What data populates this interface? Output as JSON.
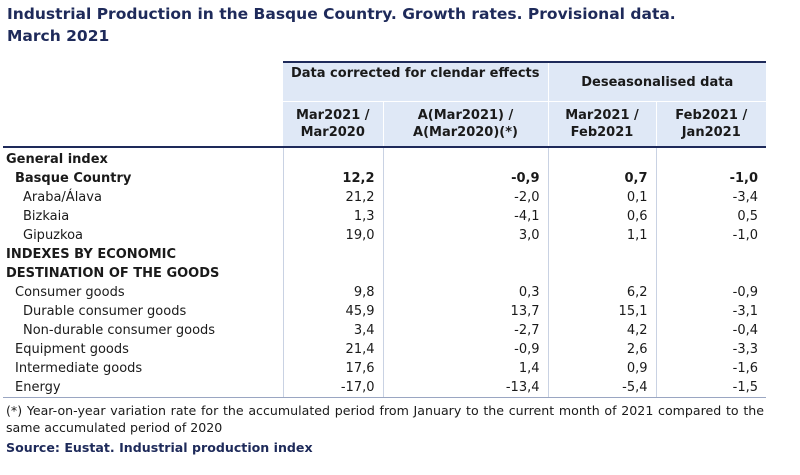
{
  "title": {
    "line1": "Industrial Production in the Basque Country. Growth rates. Provisional data.",
    "line2": "March 2021"
  },
  "headers": {
    "group1": "Data corrected for clendar effects",
    "group2": "Deseasonalised data",
    "col1": [
      "Mar2021 /",
      "Mar2020"
    ],
    "col2": [
      "A(Mar2021) /",
      "A(Mar2020)(*)"
    ],
    "col3": [
      "Mar2021 /",
      "Feb2021"
    ],
    "col4": [
      "Feb2021 /",
      "Jan2021"
    ]
  },
  "rows": [
    {
      "label": "General index",
      "type": "section",
      "values": [
        "",
        "",
        "",
        ""
      ]
    },
    {
      "label": "Basque Country",
      "type": "bold",
      "values": [
        "12,2",
        "-0,9",
        "0,7",
        "-1,0"
      ]
    },
    {
      "label": "Araba/Álava",
      "type": "ind2",
      "values": [
        "21,2",
        "-2,0",
        "0,1",
        "-3,4"
      ]
    },
    {
      "label": "Bizkaia",
      "type": "ind2",
      "values": [
        "1,3",
        "-4,1",
        "0,6",
        "0,5"
      ]
    },
    {
      "label": "Gipuzkoa",
      "type": "ind2",
      "values": [
        "19,0",
        "3,0",
        "1,1",
        "-1,0"
      ]
    },
    {
      "label": "INDEXES BY ECONOMIC",
      "type": "section",
      "values": [
        "",
        "",
        "",
        ""
      ]
    },
    {
      "label": "DESTINATION OF THE GOODS",
      "type": "section",
      "values": [
        "",
        "",
        "",
        ""
      ]
    },
    {
      "label": "Consumer goods",
      "type": "ind1",
      "values": [
        "9,8",
        "0,3",
        "6,2",
        "-0,9"
      ]
    },
    {
      "label": "Durable consumer goods",
      "type": "ind2",
      "values": [
        "45,9",
        "13,7",
        "15,1",
        "-3,1"
      ]
    },
    {
      "label": "Non-durable consumer goods",
      "type": "ind2",
      "values": [
        "3,4",
        "-2,7",
        "4,2",
        "-0,4"
      ]
    },
    {
      "label": "Equipment goods",
      "type": "ind1",
      "values": [
        "21,4",
        "-0,9",
        "2,6",
        "-3,3"
      ]
    },
    {
      "label": "Intermediate goods",
      "type": "ind1",
      "values": [
        "17,6",
        "1,4",
        "0,9",
        "-1,6"
      ]
    },
    {
      "label": "Energy",
      "type": "ind1",
      "values": [
        "-17,0",
        "-13,4",
        "-5,4",
        "-1,5"
      ]
    }
  ],
  "note": "(*) Year-on-year variation rate for the accumulated period from January to the current month of 2021 compared to the same accumulated period of 2020",
  "source": "Source: Eustat. Industrial production index"
}
